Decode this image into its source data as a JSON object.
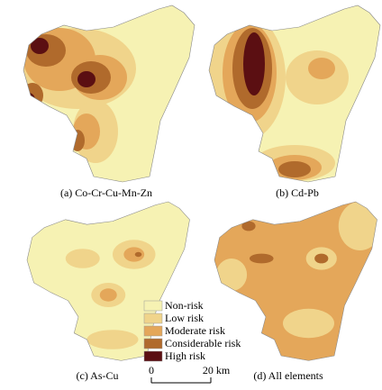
{
  "panels": [
    {
      "caption": "(a) Co-Cr-Cu-Mn-Zn"
    },
    {
      "caption": "(b) Cd-Pb"
    },
    {
      "caption": "(c) As-Cu"
    },
    {
      "caption": "(d) All elements"
    }
  ],
  "legend": {
    "items": [
      {
        "label": "Non-risk",
        "color": "#f6f2b3"
      },
      {
        "label": "Low risk",
        "color": "#f0d48b"
      },
      {
        "label": "Moderate risk",
        "color": "#e4a75a"
      },
      {
        "label": "Considerable risk",
        "color": "#b06a2c"
      },
      {
        "label": "High risk",
        "color": "#5b0f12"
      }
    ]
  },
  "scale_bar": {
    "labels": [
      "0",
      "20 km"
    ]
  }
}
